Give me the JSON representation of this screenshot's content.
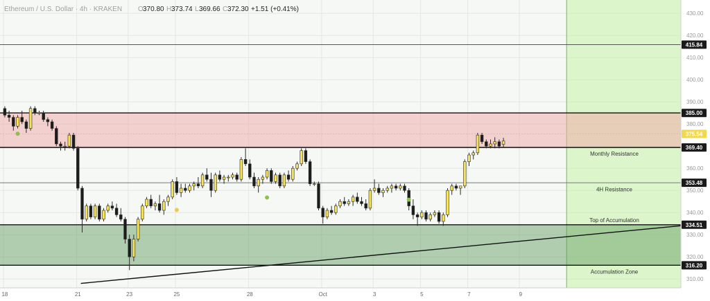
{
  "header": {
    "title": "Ethereum / U.S. Dollar · 4h · KRAKEN",
    "open": "370.80",
    "high": "373.74",
    "low": "369.66",
    "close": "372.30",
    "change": "+1.51 (+0.41%)"
  },
  "chart_data": {
    "type": "candlestick",
    "ylim": [
      306,
      436
    ],
    "y_ticks": [
      310,
      320,
      330,
      340,
      350,
      360,
      370,
      380,
      390,
      400,
      410,
      420,
      430
    ],
    "x_ticks": [
      {
        "label": "18",
        "bar": 0
      },
      {
        "label": "21",
        "bar": 17
      },
      {
        "label": "23",
        "bar": 29
      },
      {
        "label": "25",
        "bar": 40
      },
      {
        "label": "28",
        "bar": 57
      },
      {
        "label": "Oct",
        "bar": 74
      },
      {
        "label": "3",
        "bar": 86
      },
      {
        "label": "5",
        "bar": 97
      },
      {
        "label": "7",
        "bar": 108
      },
      {
        "label": "9",
        "bar": 120
      }
    ],
    "levels": [
      {
        "value": 415.84,
        "label": "415.84",
        "tag_color": "#1a1a1a",
        "line_color": "#555555"
      },
      {
        "value": 385.0,
        "label": "385.00",
        "tag_color": "#1a1a1a",
        "line_color": "#111111"
      },
      {
        "value": 375.54,
        "label": "375.54",
        "tag_color": "#f2d750",
        "line_color": "#e8c94a"
      },
      {
        "value": 369.4,
        "label": "369.40",
        "tag_color": "#1a1a1a",
        "line_color": "#111111"
      },
      {
        "value": 353.48,
        "label": "353.48",
        "tag_color": "#1a1a1a",
        "line_color": "#777777"
      },
      {
        "value": 334.51,
        "label": "334.51",
        "tag_color": "#1a1a1a",
        "line_color": "#111111"
      },
      {
        "value": 316.2,
        "label": "316.20",
        "tag_color": "#1a1a1a",
        "line_color": "#111111"
      }
    ],
    "zones": [
      {
        "from": 369.4,
        "to": 385.0,
        "color": "#f0a8a8",
        "opacity": 0.5
      },
      {
        "from": 316.2,
        "to": 334.51,
        "color": "#5e9a5e",
        "opacity": 0.45
      }
    ],
    "annotations": [
      {
        "text": "Monthly Resistance",
        "value": 366.6
      },
      {
        "text": "4H Resistance",
        "value": 350.6
      },
      {
        "text": "Top of Accumulation",
        "value": 336.6
      },
      {
        "text": "Accumulation Zone",
        "value": 313.3
      }
    ],
    "trendline": {
      "from": {
        "bar": 18,
        "value": 308
      },
      "to": {
        "bar": 160,
        "value": 334.51
      }
    },
    "markers": [
      {
        "bar": 3,
        "value": 375.6,
        "color": "#8bc34a"
      },
      {
        "bar": 40,
        "value": 341.2,
        "color": "#f2c94c"
      },
      {
        "bar": 61,
        "value": 346.8,
        "color": "#8bc34a"
      },
      {
        "bar": 94,
        "value": 345.8,
        "color": "#8bc34a"
      }
    ],
    "future_zone_start_bar": 131,
    "candles": [
      {
        "o": 387,
        "h": 388,
        "l": 383,
        "c": 384
      },
      {
        "o": 384,
        "h": 386,
        "l": 381,
        "c": 383
      },
      {
        "o": 383,
        "h": 384,
        "l": 377,
        "c": 379
      },
      {
        "o": 379,
        "h": 384,
        "l": 378,
        "c": 383
      },
      {
        "o": 383,
        "h": 386,
        "l": 380,
        "c": 381
      },
      {
        "o": 381,
        "h": 382,
        "l": 376,
        "c": 378
      },
      {
        "o": 378,
        "h": 388,
        "l": 377,
        "c": 387
      },
      {
        "o": 387,
        "h": 388,
        "l": 384,
        "c": 385
      },
      {
        "o": 385,
        "h": 386,
        "l": 384,
        "c": 385
      },
      {
        "o": 385,
        "h": 386,
        "l": 381,
        "c": 382
      },
      {
        "o": 382,
        "h": 383,
        "l": 379,
        "c": 381
      },
      {
        "o": 381,
        "h": 382,
        "l": 377,
        "c": 378
      },
      {
        "o": 378,
        "h": 379,
        "l": 370,
        "c": 371
      },
      {
        "o": 371,
        "h": 372,
        "l": 368,
        "c": 370
      },
      {
        "o": 370,
        "h": 372,
        "l": 368,
        "c": 370
      },
      {
        "o": 370,
        "h": 376,
        "l": 369,
        "c": 375
      },
      {
        "o": 375,
        "h": 376,
        "l": 368,
        "c": 369
      },
      {
        "o": 369,
        "h": 370,
        "l": 350,
        "c": 351
      },
      {
        "o": 351,
        "h": 352,
        "l": 331,
        "c": 337
      },
      {
        "o": 337,
        "h": 344,
        "l": 336,
        "c": 343
      },
      {
        "o": 343,
        "h": 344,
        "l": 337,
        "c": 338
      },
      {
        "o": 338,
        "h": 344,
        "l": 337,
        "c": 343
      },
      {
        "o": 343,
        "h": 344,
        "l": 336,
        "c": 337
      },
      {
        "o": 337,
        "h": 342,
        "l": 336,
        "c": 341
      },
      {
        "o": 341,
        "h": 344,
        "l": 340,
        "c": 343
      },
      {
        "o": 343,
        "h": 345,
        "l": 341,
        "c": 342
      },
      {
        "o": 342,
        "h": 344,
        "l": 338,
        "c": 339
      },
      {
        "o": 339,
        "h": 342,
        "l": 336,
        "c": 337
      },
      {
        "o": 337,
        "h": 338,
        "l": 326,
        "c": 328
      },
      {
        "o": 328,
        "h": 330,
        "l": 314,
        "c": 320
      },
      {
        "o": 320,
        "h": 330,
        "l": 318,
        "c": 328
      },
      {
        "o": 328,
        "h": 338,
        "l": 327,
        "c": 337
      },
      {
        "o": 337,
        "h": 344,
        "l": 336,
        "c": 343
      },
      {
        "o": 343,
        "h": 347,
        "l": 342,
        "c": 346
      },
      {
        "o": 346,
        "h": 348,
        "l": 342,
        "c": 343
      },
      {
        "o": 343,
        "h": 345,
        "l": 341,
        "c": 344
      },
      {
        "o": 344,
        "h": 348,
        "l": 340,
        "c": 341
      },
      {
        "o": 341,
        "h": 346,
        "l": 339,
        "c": 345
      },
      {
        "o": 345,
        "h": 348,
        "l": 343,
        "c": 347
      },
      {
        "o": 347,
        "h": 355,
        "l": 346,
        "c": 354
      },
      {
        "o": 354,
        "h": 356,
        "l": 348,
        "c": 349
      },
      {
        "o": 349,
        "h": 353,
        "l": 347,
        "c": 351
      },
      {
        "o": 351,
        "h": 353,
        "l": 349,
        "c": 350
      },
      {
        "o": 350,
        "h": 353,
        "l": 349,
        "c": 352
      },
      {
        "o": 352,
        "h": 354,
        "l": 350,
        "c": 353
      },
      {
        "o": 353,
        "h": 356,
        "l": 351,
        "c": 352
      },
      {
        "o": 352,
        "h": 358,
        "l": 351,
        "c": 357
      },
      {
        "o": 357,
        "h": 360,
        "l": 354,
        "c": 355
      },
      {
        "o": 355,
        "h": 358,
        "l": 347,
        "c": 350
      },
      {
        "o": 350,
        "h": 358,
        "l": 349,
        "c": 357
      },
      {
        "o": 357,
        "h": 359,
        "l": 354,
        "c": 355
      },
      {
        "o": 355,
        "h": 357,
        "l": 353,
        "c": 356
      },
      {
        "o": 356,
        "h": 357,
        "l": 354,
        "c": 356
      },
      {
        "o": 356,
        "h": 358,
        "l": 355,
        "c": 357
      },
      {
        "o": 357,
        "h": 358,
        "l": 354,
        "c": 355
      },
      {
        "o": 355,
        "h": 365,
        "l": 354,
        "c": 364
      },
      {
        "o": 364,
        "h": 369,
        "l": 361,
        "c": 362
      },
      {
        "o": 362,
        "h": 364,
        "l": 355,
        "c": 356
      },
      {
        "o": 356,
        "h": 358,
        "l": 351,
        "c": 352
      },
      {
        "o": 352,
        "h": 356,
        "l": 349,
        "c": 355
      },
      {
        "o": 355,
        "h": 357,
        "l": 353,
        "c": 356
      },
      {
        "o": 356,
        "h": 360,
        "l": 355,
        "c": 359
      },
      {
        "o": 359,
        "h": 360,
        "l": 353,
        "c": 354
      },
      {
        "o": 354,
        "h": 358,
        "l": 353,
        "c": 357
      },
      {
        "o": 357,
        "h": 358,
        "l": 351,
        "c": 352
      },
      {
        "o": 352,
        "h": 358,
        "l": 351,
        "c": 357
      },
      {
        "o": 357,
        "h": 359,
        "l": 354,
        "c": 355
      },
      {
        "o": 355,
        "h": 361,
        "l": 354,
        "c": 360
      },
      {
        "o": 360,
        "h": 363,
        "l": 359,
        "c": 362
      },
      {
        "o": 362,
        "h": 369,
        "l": 361,
        "c": 368
      },
      {
        "o": 368,
        "h": 369,
        "l": 362,
        "c": 363
      },
      {
        "o": 363,
        "h": 364,
        "l": 352,
        "c": 353
      },
      {
        "o": 353,
        "h": 354,
        "l": 352,
        "c": 353
      },
      {
        "o": 353,
        "h": 354,
        "l": 341,
        "c": 342
      },
      {
        "o": 342,
        "h": 343,
        "l": 335,
        "c": 338
      },
      {
        "o": 338,
        "h": 342,
        "l": 337,
        "c": 341
      },
      {
        "o": 341,
        "h": 343,
        "l": 339,
        "c": 340
      },
      {
        "o": 340,
        "h": 344,
        "l": 339,
        "c": 343
      },
      {
        "o": 343,
        "h": 346,
        "l": 342,
        "c": 345
      },
      {
        "o": 345,
        "h": 347,
        "l": 343,
        "c": 344
      },
      {
        "o": 344,
        "h": 346,
        "l": 343,
        "c": 345
      },
      {
        "o": 345,
        "h": 348,
        "l": 343,
        "c": 347
      },
      {
        "o": 347,
        "h": 349,
        "l": 344,
        "c": 345
      },
      {
        "o": 345,
        "h": 347,
        "l": 343,
        "c": 344
      },
      {
        "o": 344,
        "h": 346,
        "l": 341,
        "c": 342
      },
      {
        "o": 342,
        "h": 351,
        "l": 341,
        "c": 350
      },
      {
        "o": 350,
        "h": 355,
        "l": 349,
        "c": 351
      },
      {
        "o": 351,
        "h": 353,
        "l": 348,
        "c": 349
      },
      {
        "o": 349,
        "h": 351,
        "l": 347,
        "c": 350
      },
      {
        "o": 350,
        "h": 352,
        "l": 349,
        "c": 351
      },
      {
        "o": 351,
        "h": 353,
        "l": 349,
        "c": 352
      },
      {
        "o": 352,
        "h": 353,
        "l": 350,
        "c": 351
      },
      {
        "o": 351,
        "h": 353,
        "l": 350,
        "c": 352
      },
      {
        "o": 352,
        "h": 353,
        "l": 349,
        "c": 350
      },
      {
        "o": 350,
        "h": 351,
        "l": 341,
        "c": 343
      },
      {
        "o": 343,
        "h": 346,
        "l": 337,
        "c": 339
      },
      {
        "o": 339,
        "h": 340,
        "l": 334,
        "c": 338
      },
      {
        "o": 338,
        "h": 341,
        "l": 337,
        "c": 340
      },
      {
        "o": 340,
        "h": 341,
        "l": 336,
        "c": 337
      },
      {
        "o": 337,
        "h": 340,
        "l": 336,
        "c": 339
      },
      {
        "o": 339,
        "h": 341,
        "l": 338,
        "c": 340
      },
      {
        "o": 340,
        "h": 341,
        "l": 335,
        "c": 336
      },
      {
        "o": 336,
        "h": 340,
        "l": 334,
        "c": 339
      },
      {
        "o": 339,
        "h": 351,
        "l": 338,
        "c": 350
      },
      {
        "o": 350,
        "h": 353,
        "l": 348,
        "c": 352
      },
      {
        "o": 352,
        "h": 353,
        "l": 350,
        "c": 351
      },
      {
        "o": 351,
        "h": 352,
        "l": 348,
        "c": 352
      },
      {
        "o": 352,
        "h": 364,
        "l": 351,
        "c": 363
      },
      {
        "o": 363,
        "h": 367,
        "l": 361,
        "c": 366
      },
      {
        "o": 366,
        "h": 368,
        "l": 364,
        "c": 367
      },
      {
        "o": 367,
        "h": 376,
        "l": 366,
        "c": 375
      },
      {
        "o": 375,
        "h": 376,
        "l": 371,
        "c": 372
      },
      {
        "o": 372,
        "h": 373,
        "l": 369,
        "c": 370
      },
      {
        "o": 370,
        "h": 373,
        "l": 369,
        "c": 371
      },
      {
        "o": 371,
        "h": 374,
        "l": 369,
        "c": 372
      },
      {
        "o": 372,
        "h": 373,
        "l": 369,
        "c": 370
      },
      {
        "o": 370.8,
        "h": 373.74,
        "l": 369.66,
        "c": 372.3
      }
    ]
  }
}
